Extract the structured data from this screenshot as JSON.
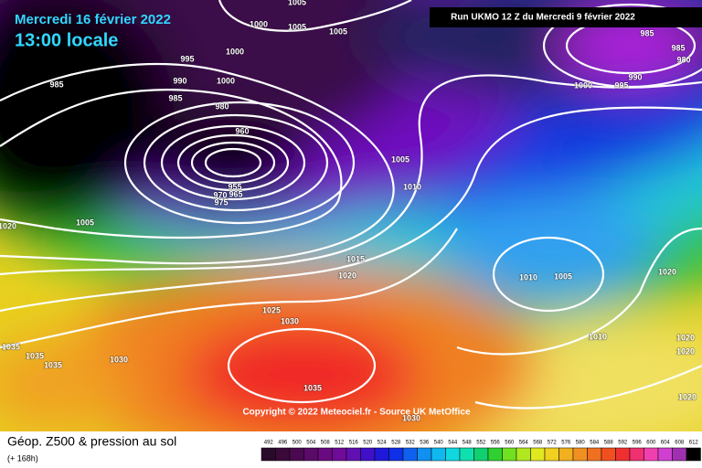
{
  "header": {
    "date": "Mercredi 16 février 2022",
    "time": "13:00 locale",
    "run": "Run UKMO 12 Z du Mercredi 9 février 2022"
  },
  "copyright": "Copyright © 2022 Meteociel.fr - Source UK MetOffice",
  "footer": {
    "title": "Géop. Z500 & pression au sol",
    "lead": "(+ 168h)"
  },
  "isobar_labels": [
    1005,
    1000,
    1005,
    1005,
    1000,
    995,
    990,
    1000,
    985,
    980,
    985,
    1005,
    1010,
    1005,
    1020,
    1015,
    1020,
    1025,
    1030,
    1035,
    1035,
    1035,
    1030,
    1035,
    1010,
    1005,
    1010,
    1020,
    1020,
    1020,
    1020,
    985,
    985,
    980,
    990,
    1000,
    995,
    1030,
    960,
    955,
    975,
    965,
    970
  ],
  "legend": {
    "values": [
      492,
      496,
      500,
      504,
      508,
      512,
      516,
      520,
      524,
      528,
      532,
      536,
      540,
      544,
      548,
      552,
      556,
      560,
      564,
      568,
      572,
      576,
      580,
      584,
      588,
      592,
      596,
      600,
      604,
      608,
      612
    ]
  }
}
